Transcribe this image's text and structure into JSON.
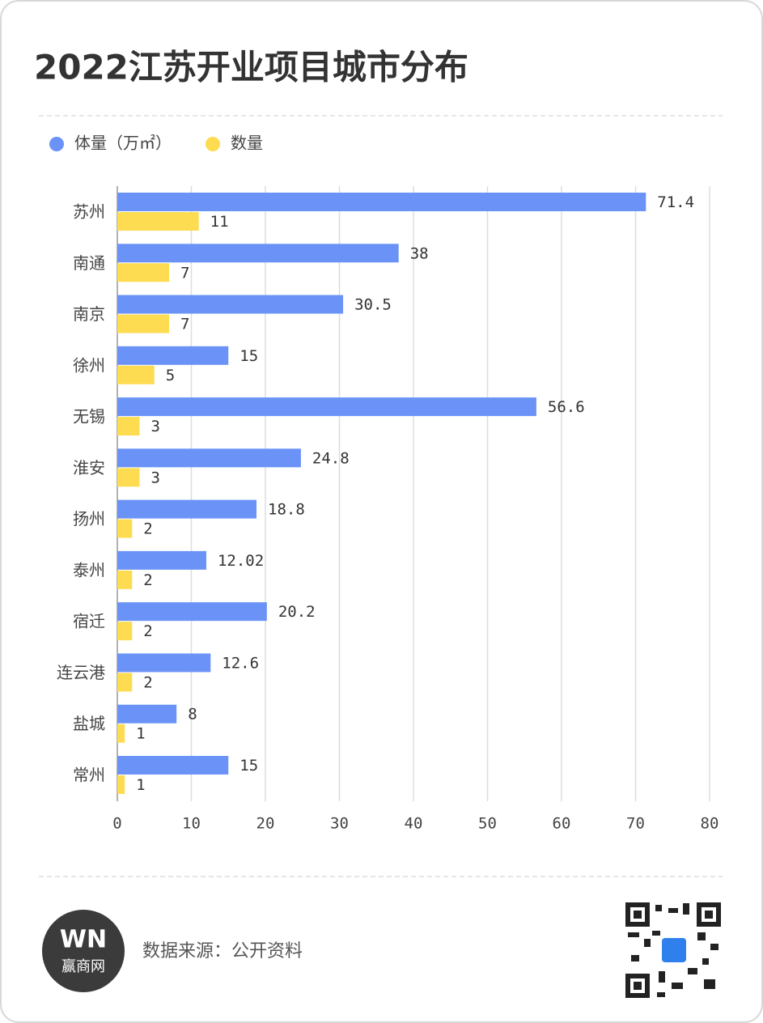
{
  "chart_data": {
    "type": "hbar",
    "title": "2022江苏开业项目城市分布",
    "categories": [
      "苏州",
      "南通",
      "南京",
      "徐州",
      "无锡",
      "淮安",
      "扬州",
      "泰州",
      "宿迁",
      "连云港",
      "盐城",
      "常州"
    ],
    "series": [
      {
        "name": "体量（万㎡）",
        "color": "#6b93f7",
        "values": [
          71.4,
          38,
          30.5,
          15,
          56.6,
          24.8,
          18.8,
          12.02,
          20.2,
          12.6,
          8,
          15
        ]
      },
      {
        "name": "数量",
        "color": "#fddc52",
        "values": [
          11,
          7,
          7,
          5,
          3,
          3,
          2,
          2,
          2,
          2,
          1,
          1
        ]
      }
    ],
    "xlim": [
      0,
      80
    ],
    "xticks": [
      0,
      10,
      20,
      30,
      40,
      50,
      60,
      70,
      80
    ],
    "grid": true
  },
  "footer": {
    "source": "数据来源：公开资料",
    "logo": "赢商网"
  }
}
